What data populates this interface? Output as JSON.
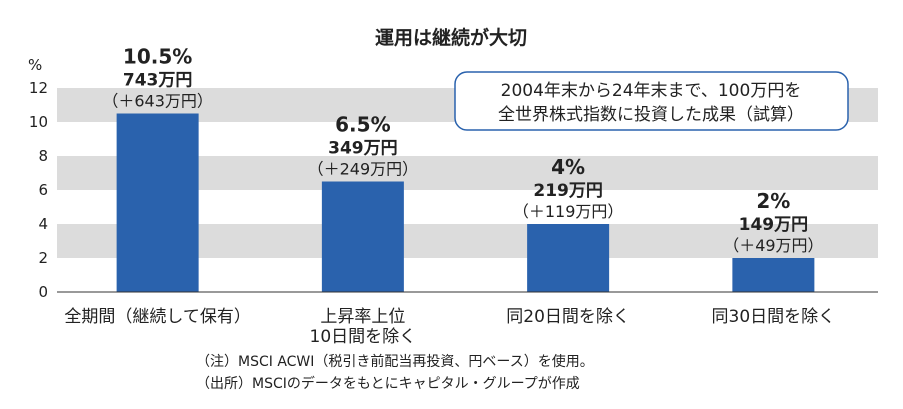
{
  "chart_data": {
    "type": "bar",
    "title": "運用は継続が大切",
    "y_unit": "%",
    "ylim": [
      0,
      12
    ],
    "y_ticks": [
      "0",
      "2",
      "4",
      "6",
      "8",
      "10",
      "12"
    ],
    "grid": "alternating horizontal bands",
    "categories": [
      [
        "全期間（継続して保有）"
      ],
      [
        "上昇率上位",
        "10日間を除く"
      ],
      [
        "同20日間を除く"
      ],
      [
        "同30日間を除く"
      ]
    ],
    "values": [
      10.5,
      6.5,
      4,
      2
    ],
    "data_labels": [
      {
        "pct": "10.5%",
        "value": "743万円",
        "gain": "（＋643万円）"
      },
      {
        "pct": "6.5%",
        "value": "349万円",
        "gain": "（＋249万円）"
      },
      {
        "pct": "4%",
        "value": "219万円",
        "gain": "（＋119万円）"
      },
      {
        "pct": "2%",
        "value": "149万円",
        "gain": "（＋49万円）"
      }
    ],
    "annotation": [
      "2004年末から24年末まで、100万円を",
      "全世界株式指数に投資した成果（試算）"
    ],
    "bar_color": "#2a62ad",
    "band_color": "#dcdcdc"
  },
  "notes": [
    "（注）MSCI ACWI（税引き前配当再投資、円ベース）を使用。",
    "（出所）MSCIのデータをもとにキャピタル・グループが作成"
  ]
}
